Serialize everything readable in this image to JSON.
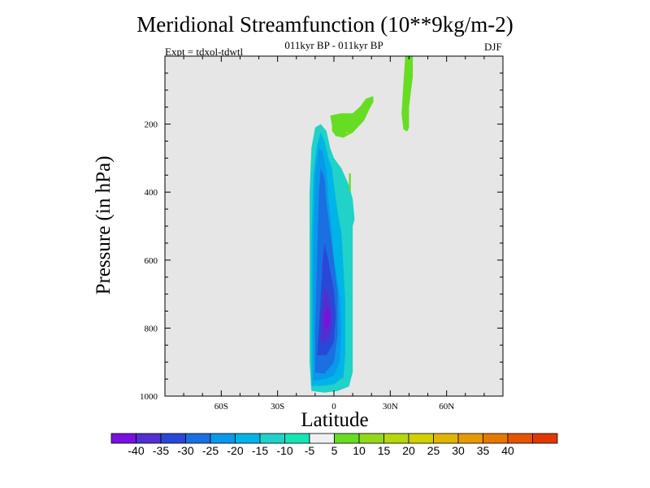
{
  "chart_data": {
    "type": "contour",
    "title": "Meridional Streamfunction (10**9kg/m-2)",
    "subtitle": "011kyr BP - 011kyr BP",
    "experiment": "Expt = tdxol-tdwtl",
    "season": "DJF",
    "xlabel": "Latitude",
    "ylabel": "Pressure (in hPa)",
    "xlim": [
      -90,
      90
    ],
    "ylim": [
      1000,
      0
    ],
    "x_ticks": [
      {
        "value": -60,
        "label": "60S"
      },
      {
        "value": -30,
        "label": "30S"
      },
      {
        "value": 0,
        "label": "0"
      },
      {
        "value": 30,
        "label": "30N"
      },
      {
        "value": 60,
        "label": "60N"
      }
    ],
    "y_ticks": [
      {
        "value": 200,
        "label": "200"
      },
      {
        "value": 400,
        "label": "400"
      },
      {
        "value": 600,
        "label": "600"
      },
      {
        "value": 800,
        "label": "800"
      },
      {
        "value": 1000,
        "label": "1000"
      }
    ],
    "background_color": "#e6e6e6",
    "regions": [
      {
        "name": "negative-cell-level-10",
        "color": "#20d2c8",
        "points": [
          [
            -12,
            985
          ],
          [
            -13,
            900
          ],
          [
            -13,
            650
          ],
          [
            -13,
            400
          ],
          [
            -12,
            270
          ],
          [
            -10,
            210
          ],
          [
            -7,
            200
          ],
          [
            -4,
            220
          ],
          [
            -2,
            270
          ],
          [
            0,
            300
          ],
          [
            4,
            330
          ],
          [
            8,
            380
          ],
          [
            10,
            420
          ],
          [
            11,
            480
          ],
          [
            10,
            500
          ],
          [
            10,
            720
          ],
          [
            10,
            930
          ],
          [
            8,
            972
          ],
          [
            2,
            985
          ],
          [
            -5,
            990
          ]
        ]
      },
      {
        "name": "negative-cell-level-15",
        "color": "#00b4e8",
        "points": [
          [
            -12,
            970
          ],
          [
            -12,
            850
          ],
          [
            -12,
            550
          ],
          [
            -11,
            350
          ],
          [
            -9,
            260
          ],
          [
            -7,
            225
          ],
          [
            -5,
            250
          ],
          [
            -3,
            300
          ],
          [
            -1,
            330
          ],
          [
            0,
            380
          ],
          [
            2,
            460
          ],
          [
            4,
            520
          ],
          [
            5,
            620
          ],
          [
            6,
            720
          ],
          [
            6,
            880
          ],
          [
            5,
            945
          ],
          [
            0,
            965
          ],
          [
            -6,
            970
          ]
        ]
      },
      {
        "name": "negative-cell-level-20",
        "color": "#0a98ea",
        "points": [
          [
            -11,
            955
          ],
          [
            -11,
            850
          ],
          [
            -11,
            550
          ],
          [
            -10,
            350
          ],
          [
            -8,
            270
          ],
          [
            -6,
            280
          ],
          [
            -4,
            340
          ],
          [
            -3,
            420
          ],
          [
            -1,
            520
          ],
          [
            0,
            600
          ],
          [
            3,
            700
          ],
          [
            4,
            800
          ],
          [
            3,
            900
          ],
          [
            0,
            940
          ],
          [
            -5,
            950
          ]
        ]
      },
      {
        "name": "negative-cell-level-25",
        "color": "#1a70e0",
        "points": [
          [
            -10,
            930
          ],
          [
            -10,
            800
          ],
          [
            -9,
            600
          ],
          [
            -8,
            400
          ],
          [
            -7,
            330
          ],
          [
            -5,
            360
          ],
          [
            -4,
            430
          ],
          [
            -2,
            520
          ],
          [
            0,
            600
          ],
          [
            2,
            700
          ],
          [
            2,
            820
          ],
          [
            0,
            900
          ],
          [
            -5,
            935
          ]
        ]
      },
      {
        "name": "negative-cell-level-30",
        "color": "#2a48d8",
        "points": [
          [
            -9,
            880
          ],
          [
            -8,
            800
          ],
          [
            -7,
            700
          ],
          [
            -6,
            600
          ],
          [
            -5,
            550
          ],
          [
            -3,
            600
          ],
          [
            0,
            690
          ],
          [
            1,
            760
          ],
          [
            0,
            840
          ],
          [
            -4,
            880
          ]
        ]
      },
      {
        "name": "negative-cell-level-35",
        "color": "#5030d0",
        "points": [
          [
            -7,
            840
          ],
          [
            -7,
            760
          ],
          [
            -5,
            680
          ],
          [
            -3,
            700
          ],
          [
            -1,
            760
          ],
          [
            -2,
            820
          ],
          [
            -5,
            845
          ]
        ]
      },
      {
        "name": "negative-cell-level-40",
        "color": "#7a10e0",
        "points": [
          [
            -5,
            800
          ],
          [
            -5,
            760
          ],
          [
            -3,
            735
          ],
          [
            -2,
            770
          ],
          [
            -3,
            805
          ]
        ]
      },
      {
        "name": "positive-cell-upper",
        "color": "#66dd22",
        "points": [
          [
            -1,
            205
          ],
          [
            -2,
            175
          ],
          [
            4,
            168
          ],
          [
            10,
            168
          ],
          [
            14,
            148
          ],
          [
            17,
            125
          ],
          [
            21,
            118
          ],
          [
            21,
            135
          ],
          [
            19,
            155
          ],
          [
            16,
            190
          ],
          [
            10,
            225
          ],
          [
            5,
            240
          ],
          [
            1,
            235
          ],
          [
            -1,
            220
          ]
        ]
      },
      {
        "name": "positive-cell-north",
        "color": "#66dd22",
        "points": [
          [
            38,
            0
          ],
          [
            42,
            0
          ],
          [
            42,
            60
          ],
          [
            40,
            150
          ],
          [
            40,
            210
          ],
          [
            39,
            222
          ],
          [
            37,
            215
          ],
          [
            36,
            170
          ],
          [
            37,
            80
          ]
        ]
      },
      {
        "name": "positive-sliver",
        "color": "#66dd22",
        "points": [
          [
            8,
            345
          ],
          [
            9,
            345
          ],
          [
            9,
            398
          ],
          [
            8,
            398
          ]
        ]
      },
      {
        "name": "positive-dot",
        "color": "#b4d80a",
        "points": [
          [
            6,
            225
          ],
          [
            7,
            222
          ],
          [
            8,
            226
          ],
          [
            7,
            230
          ]
        ]
      }
    ],
    "colorbar": {
      "colors": [
        "#7a10e0",
        "#5030d0",
        "#2a48d8",
        "#1a70e0",
        "#0a98ea",
        "#00b4e8",
        "#20d2c8",
        "#14e6b4",
        "#f0f0f0",
        "#66dd22",
        "#94d81a",
        "#b4d80a",
        "#d2d000",
        "#e2b400",
        "#e69a00",
        "#e67800",
        "#e65400",
        "#e23800"
      ],
      "labels": [
        "-40",
        "-35",
        "-30",
        "-25",
        "-20",
        "-15",
        "-10",
        "-5",
        "5",
        "10",
        "15",
        "20",
        "25",
        "30",
        "35",
        "40"
      ]
    }
  }
}
